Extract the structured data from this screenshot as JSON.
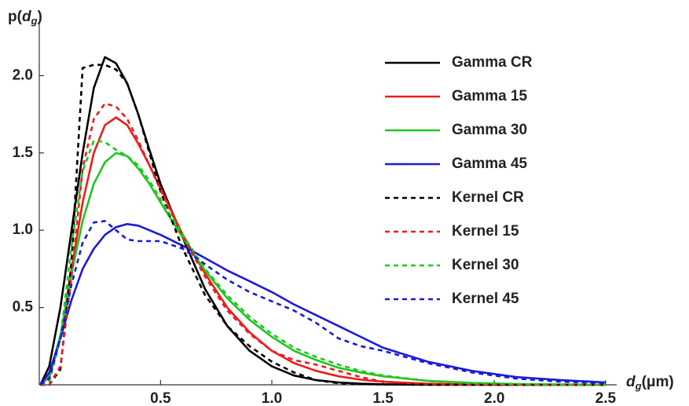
{
  "chart_data": {
    "type": "line",
    "ylabel": [
      "p(",
      "d",
      "g",
      ")"
    ],
    "xlabel": [
      "d",
      "g",
      "(μm)"
    ],
    "x": [
      -0.04,
      0,
      0.05,
      0.1,
      0.15,
      0.2,
      0.25,
      0.3,
      0.35,
      0.4,
      0.45,
      0.5,
      0.6,
      0.7,
      0.8,
      0.9,
      1.0,
      1.1,
      1.2,
      1.3,
      1.4,
      1.5,
      1.7,
      1.9,
      2.1,
      2.3,
      2.5
    ],
    "series": [
      {
        "name": "Gamma CR",
        "color": "#000000",
        "dashed": false,
        "values": [
          0,
          0.12,
          0.5,
          1.0,
          1.5,
          1.92,
          2.12,
          2.08,
          1.95,
          1.75,
          1.52,
          1.3,
          0.95,
          0.62,
          0.38,
          0.22,
          0.12,
          0.06,
          0.03,
          0.015,
          0.007,
          0.003,
          0.001,
          0,
          0,
          0,
          0
        ]
      },
      {
        "name": "Gamma 15",
        "color": "#ee1c1c",
        "dashed": false,
        "values": [
          0,
          0.05,
          0.3,
          0.75,
          1.18,
          1.5,
          1.68,
          1.73,
          1.68,
          1.56,
          1.42,
          1.27,
          0.97,
          0.72,
          0.5,
          0.34,
          0.22,
          0.14,
          0.09,
          0.055,
          0.033,
          0.02,
          0.007,
          0.002,
          0.001,
          0,
          0
        ]
      },
      {
        "name": "Gamma 30",
        "color": "#1ec81e",
        "dashed": false,
        "values": [
          0,
          0.06,
          0.32,
          0.72,
          1.06,
          1.3,
          1.44,
          1.5,
          1.48,
          1.4,
          1.3,
          1.18,
          0.95,
          0.74,
          0.56,
          0.42,
          0.31,
          0.22,
          0.16,
          0.11,
          0.08,
          0.055,
          0.026,
          0.012,
          0.005,
          0.002,
          0.001
        ]
      },
      {
        "name": "Gamma 45",
        "color": "#1a1adc",
        "dashed": false,
        "values": [
          0,
          0.08,
          0.3,
          0.55,
          0.75,
          0.88,
          0.97,
          1.02,
          1.04,
          1.03,
          1.0,
          0.97,
          0.9,
          0.82,
          0.74,
          0.67,
          0.6,
          0.52,
          0.45,
          0.38,
          0.31,
          0.24,
          0.15,
          0.09,
          0.05,
          0.03,
          0.015
        ]
      },
      {
        "name": "Kernel CR",
        "color": "#000000",
        "dashed": true,
        "values": [
          0,
          0,
          0.1,
          0.8,
          2.05,
          2.07,
          2.07,
          2.04,
          1.95,
          1.75,
          1.5,
          1.25,
          0.88,
          0.58,
          0.38,
          0.25,
          0.15,
          0.08,
          0.03,
          0.01,
          0.005,
          0.002,
          0,
          0,
          0,
          0,
          0
        ]
      },
      {
        "name": "Kernel 15",
        "color": "#ee1c1c",
        "dashed": true,
        "values": [
          0,
          0,
          0.12,
          0.7,
          1.4,
          1.72,
          1.82,
          1.8,
          1.72,
          1.58,
          1.42,
          1.26,
          0.96,
          0.7,
          0.48,
          0.33,
          0.22,
          0.16,
          0.13,
          0.09,
          0.05,
          0.02,
          0.005,
          0.001,
          0,
          0,
          0
        ]
      },
      {
        "name": "Kernel 30",
        "color": "#1ec81e",
        "dashed": true,
        "values": [
          0,
          0.02,
          0.3,
          0.9,
          1.38,
          1.58,
          1.57,
          1.52,
          1.48,
          1.42,
          1.32,
          1.2,
          0.97,
          0.75,
          0.58,
          0.44,
          0.33,
          0.24,
          0.18,
          0.13,
          0.09,
          0.06,
          0.025,
          0.01,
          0.004,
          0.001,
          0
        ]
      },
      {
        "name": "Kernel 45",
        "color": "#1a1adc",
        "dashed": true,
        "values": [
          0,
          0.04,
          0.3,
          0.65,
          0.92,
          1.05,
          1.06,
          1.0,
          0.94,
          0.93,
          0.93,
          0.93,
          0.88,
          0.78,
          0.68,
          0.6,
          0.54,
          0.48,
          0.4,
          0.3,
          0.25,
          0.22,
          0.14,
          0.08,
          0.04,
          0.02,
          0.01
        ]
      }
    ],
    "xlim": [
      -0.045,
      2.55
    ],
    "ylim": [
      0,
      2.2
    ],
    "xticks": [
      0.5,
      {
        "value": 1,
        "label": "1.0"
      },
      1.5,
      {
        "value": 2,
        "label": "2.0"
      },
      2.5
    ],
    "yticks": [
      0.5,
      {
        "value": 1,
        "label": "1.0"
      },
      1.5,
      {
        "value": 2,
        "label": "2.0"
      }
    ],
    "grid": false,
    "legend": "top-right"
  }
}
